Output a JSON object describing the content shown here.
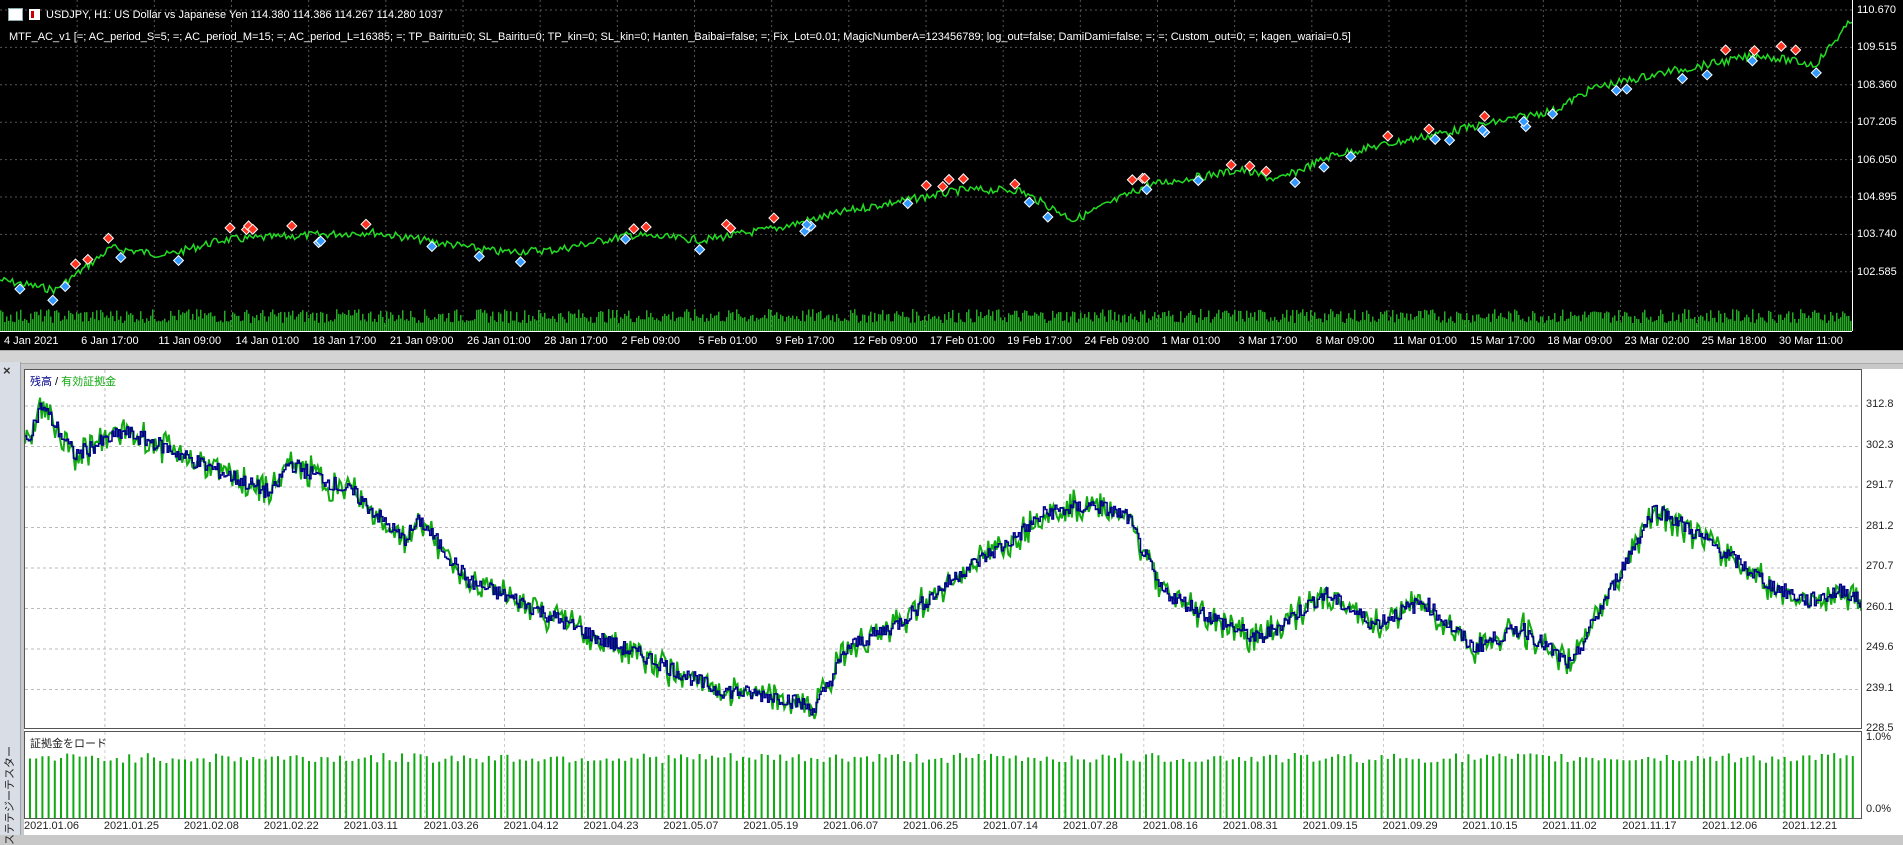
{
  "chart": {
    "title": "USDJPY, H1:  US Dollar vs Japanese Yen  114.380 114.386 114.267 114.280  1037",
    "params": "MTF_AC_v1 [=; AC_period_S=5; =; AC_period_M=15; =; AC_period_L=16385; =; TP_Bairitu=0; SL_Bairitu=0; TP_kin=0; SL_kin=0; Hanten_Baibai=false; =; Fix_Lot=0.01; MagicNumberA=123456789; log_out=false; DamiDami=false; =; =; Custom_out=0; =; kagen_wariai=0.5]",
    "price_ticks": [
      "110.670",
      "109.515",
      "108.360",
      "107.205",
      "106.050",
      "104.895",
      "103.740",
      "102.585"
    ],
    "time_ticks": [
      "4 Jan 2021",
      "6 Jan 17:00",
      "11 Jan 09:00",
      "14 Jan 01:00",
      "18 Jan 17:00",
      "21 Jan 09:00",
      "26 Jan 01:00",
      "28 Jan 17:00",
      "2 Feb 09:00",
      "5 Feb 01:00",
      "9 Feb 17:00",
      "12 Feb 09:00",
      "17 Feb 01:00",
      "19 Feb 17:00",
      "24 Feb 09:00",
      "1 Mar 01:00",
      "3 Mar 17:00",
      "8 Mar 09:00",
      "11 Mar 01:00",
      "15 Mar 17:00",
      "18 Mar 09:00",
      "23 Mar 02:00",
      "25 Mar 18:00",
      "30 Mar 11:00"
    ],
    "line_color": "#22dd22",
    "volume_color": "#22aa22",
    "buy_marker_color": "#3399ff",
    "sell_marker_color": "#ff3322"
  },
  "tester": {
    "label": "ステテジーテスター",
    "close_glyph": "×"
  },
  "balance": {
    "legend_balance": "残高",
    "legend_sep": " / ",
    "legend_equity": "有効証拠金",
    "balance_color": "#00008b",
    "equity_color": "#11aa11",
    "ticks": [
      "312.8",
      "302.3",
      "291.7",
      "281.2",
      "270.7",
      "260.1",
      "249.6",
      "239.1",
      "228.5"
    ],
    "load_label": "証拠金をロード",
    "load_ticks": [
      "1.0%",
      "0.0%"
    ],
    "date_ticks": [
      "2021.01.06",
      "2021.01.25",
      "2021.02.08",
      "2021.02.22",
      "2021.03.11",
      "2021.03.26",
      "2021.04.12",
      "2021.04.23",
      "2021.05.07",
      "2021.05.19",
      "2021.06.07",
      "2021.06.25",
      "2021.07.14",
      "2021.07.28",
      "2021.08.16",
      "2021.08.31",
      "2021.09.15",
      "2021.09.29",
      "2021.10.15",
      "2021.11.02",
      "2021.11.17",
      "2021.12.06",
      "2021.12.21"
    ]
  }
}
